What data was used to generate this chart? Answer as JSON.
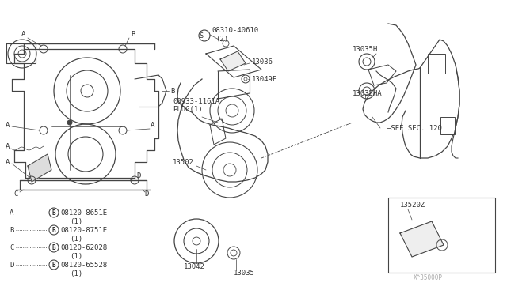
{
  "bg_color": "#ffffff",
  "line_color": "#444444",
  "text_color": "#333333",
  "font_size": 6.5,
  "legend_items": [
    {
      "label": "A",
      "part_num": "08120-8651E"
    },
    {
      "label": "B",
      "part_num": "08120-8751E"
    },
    {
      "label": "C",
      "part_num": "08120-62028"
    },
    {
      "label": "D",
      "part_num": "08120-65528"
    }
  ],
  "watermark": "X^35000P"
}
